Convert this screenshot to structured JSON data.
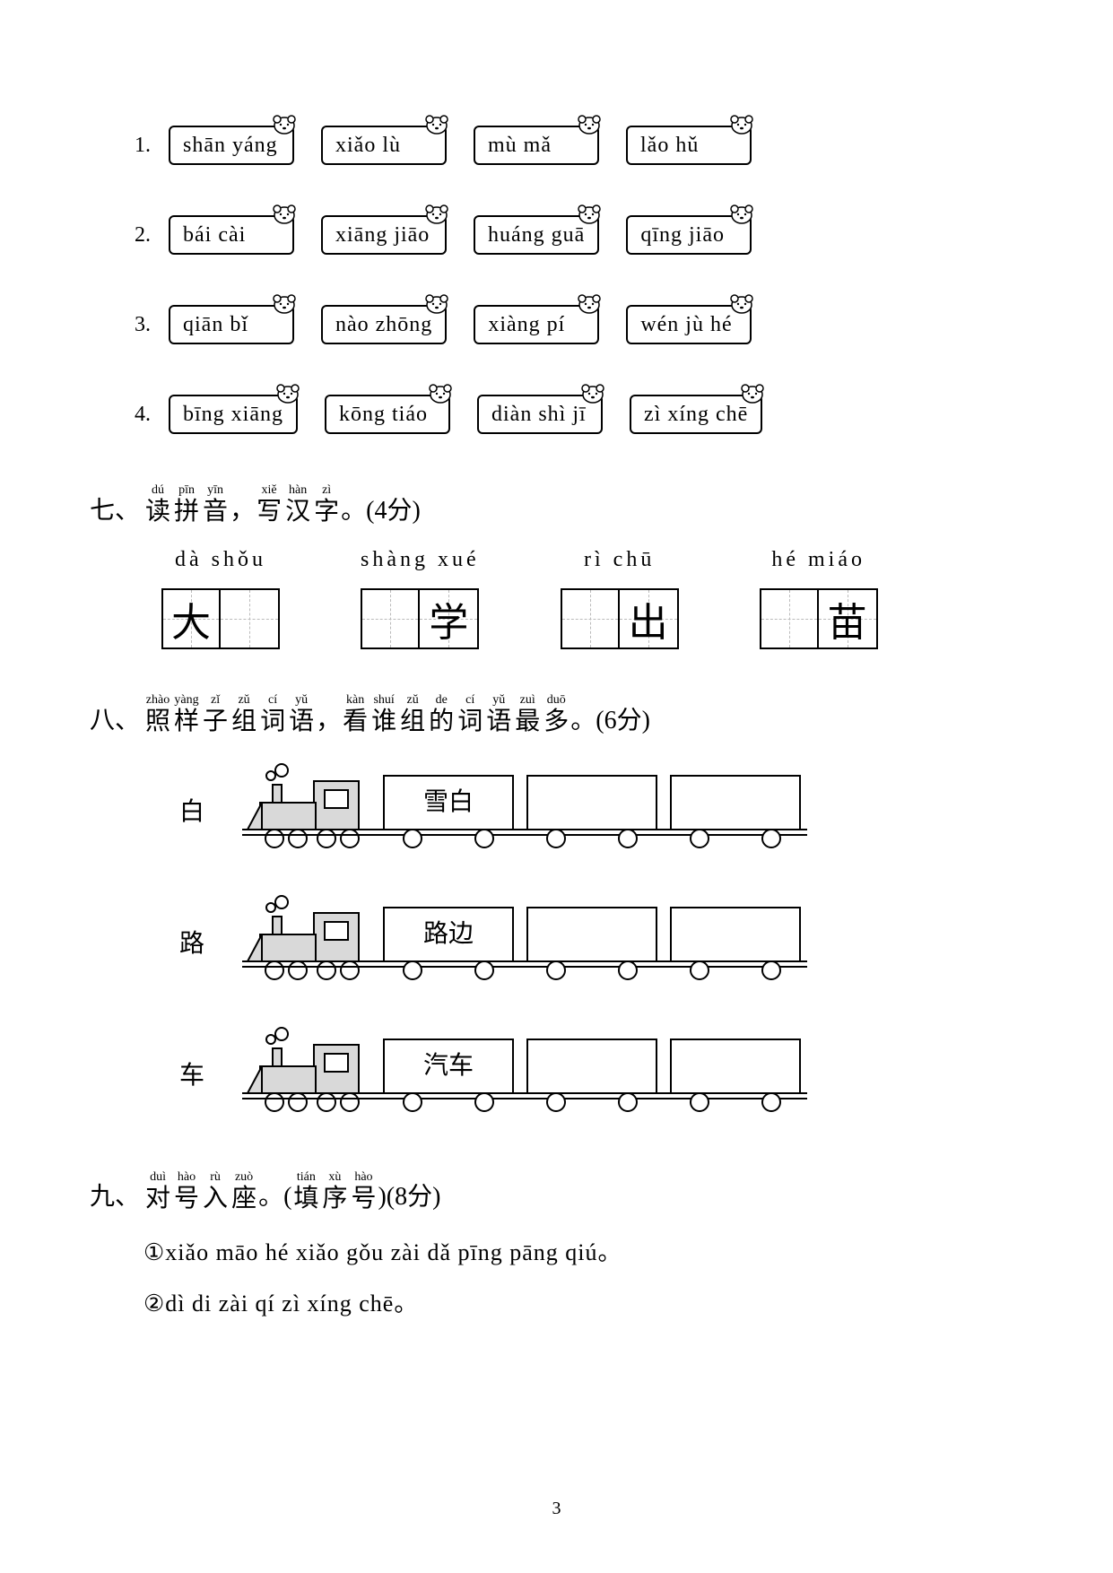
{
  "page_number": "3",
  "pinyin_rows": [
    {
      "num": "1.",
      "boxes": [
        "shān yáng",
        "xiǎo lù",
        "mù mǎ",
        "lǎo hǔ"
      ]
    },
    {
      "num": "2.",
      "boxes": [
        "bái cài",
        "xiāng jiāo",
        "huáng guā",
        "qīng jiāo"
      ]
    },
    {
      "num": "3.",
      "boxes": [
        "qiān bǐ",
        "nào zhōng",
        "xiàng pí",
        "wén jù hé"
      ]
    },
    {
      "num": "4.",
      "boxes": [
        "bīng xiāng",
        "kōng tiáo",
        "diàn shì jī",
        "zì xíng chē"
      ]
    }
  ],
  "section7": {
    "num": "七、",
    "ruby": [
      {
        "rt": "dú",
        "rb": "读"
      },
      {
        "rt": "pīn",
        "rb": "拼"
      },
      {
        "rt": "yīn",
        "rb": "音"
      }
    ],
    "comma": "，",
    "ruby2": [
      {
        "rt": "xiě",
        "rb": "写"
      },
      {
        "rt": "hàn",
        "rb": "汉"
      },
      {
        "rt": "zì",
        "rb": "字"
      }
    ],
    "tail": "。(4分)",
    "items": [
      {
        "pinyin": "dà  shǒu",
        "chars": [
          "大",
          ""
        ]
      },
      {
        "pinyin": "shàng xué",
        "chars": [
          "",
          "学"
        ]
      },
      {
        "pinyin": "rì  chū",
        "chars": [
          "",
          "出"
        ]
      },
      {
        "pinyin": "hé miáo",
        "chars": [
          "",
          "苗"
        ]
      }
    ]
  },
  "section8": {
    "num": "八、",
    "ruby": [
      {
        "rt": "zhào",
        "rb": "照"
      },
      {
        "rt": "yàng",
        "rb": "样"
      },
      {
        "rt": "zǐ",
        "rb": "子"
      },
      {
        "rt": "zǔ",
        "rb": "组"
      },
      {
        "rt": "cí",
        "rb": "词"
      },
      {
        "rt": "yǔ",
        "rb": "语"
      }
    ],
    "comma": "，",
    "ruby2": [
      {
        "rt": "kàn",
        "rb": "看"
      },
      {
        "rt": "shuí",
        "rb": "谁"
      },
      {
        "rt": "zǔ",
        "rb": "组"
      },
      {
        "rt": "de",
        "rb": "的"
      },
      {
        "rt": "cí",
        "rb": "词"
      },
      {
        "rt": "yǔ",
        "rb": "语"
      },
      {
        "rt": "zuì",
        "rb": "最"
      },
      {
        "rt": "duō",
        "rb": "多"
      }
    ],
    "tail": "。(6分)",
    "trains": [
      {
        "label": "白",
        "first": "雪白"
      },
      {
        "label": "路",
        "first": "路边"
      },
      {
        "label": "车",
        "first": "汽车"
      }
    ]
  },
  "section9": {
    "num": "九、",
    "ruby": [
      {
        "rt": "duì",
        "rb": "对"
      },
      {
        "rt": "hào",
        "rb": "号"
      },
      {
        "rt": "rù",
        "rb": "入"
      },
      {
        "rt": "zuò",
        "rb": "座"
      }
    ],
    "mid": "。(",
    "ruby2": [
      {
        "rt": "tián",
        "rb": "填"
      },
      {
        "rt": "xù",
        "rb": "序"
      },
      {
        "rt": "hào",
        "rb": "号"
      }
    ],
    "tail": ")(8分)",
    "lines": [
      "①xiǎo māo hé xiǎo gǒu zài dǎ pīng pāng qiú。",
      "②dì di zài qí zì xíng chē。"
    ]
  }
}
